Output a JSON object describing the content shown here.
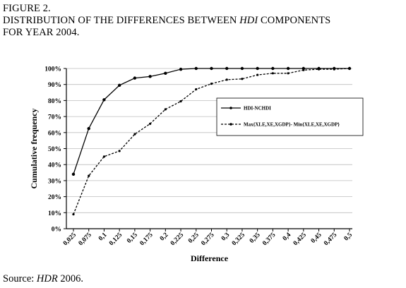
{
  "figure": {
    "label": "FIGURE 2.",
    "title_part1": "DISTRIBUTION OF THE DIFFERENCES BETWEEN ",
    "title_italic": "HDI",
    "title_part2": " COMPONENTS",
    "title_line2": "FOR YEAR 2004."
  },
  "source": {
    "prefix": "Source: ",
    "italic": "HDR",
    "suffix": " 2006."
  },
  "chart_data": {
    "type": "line",
    "xlabel": "Difference",
    "ylabel": "Cumulative frequency",
    "x": [
      "0,025",
      "0,075",
      "0,1",
      "0,125",
      "0,15",
      "0,175",
      "0,2",
      "0,225",
      "0,25",
      "0,275",
      "0,3",
      "0,325",
      "0,35",
      "0,375",
      "0,4",
      "0,425",
      "0,45",
      "0,475",
      "0,5"
    ],
    "y_ticks": [
      "0%",
      "10%",
      "20%",
      "30%",
      "40%",
      "50%",
      "60%",
      "70%",
      "80%",
      "90%",
      "100%"
    ],
    "ylim": [
      0,
      100
    ],
    "legend_position": "right",
    "series": [
      {
        "name": "HDI-NCHDI",
        "style": "solid",
        "color": "#000000",
        "values": [
          34,
          62.5,
          80.5,
          89.5,
          94,
          95,
          97,
          99.5,
          100,
          100,
          100,
          100,
          100,
          100,
          100,
          100,
          100,
          100,
          100
        ]
      },
      {
        "name": "Max{XLE,XE,XGDP}- Min{XLE,XE,XGDP}",
        "style": "dashed",
        "color": "#000000",
        "values": [
          9,
          33,
          45,
          48.5,
          59,
          65.5,
          74.5,
          79.5,
          87,
          90.5,
          93,
          93.5,
          96,
          97,
          97,
          99,
          99.5,
          99.5,
          100
        ]
      }
    ]
  }
}
